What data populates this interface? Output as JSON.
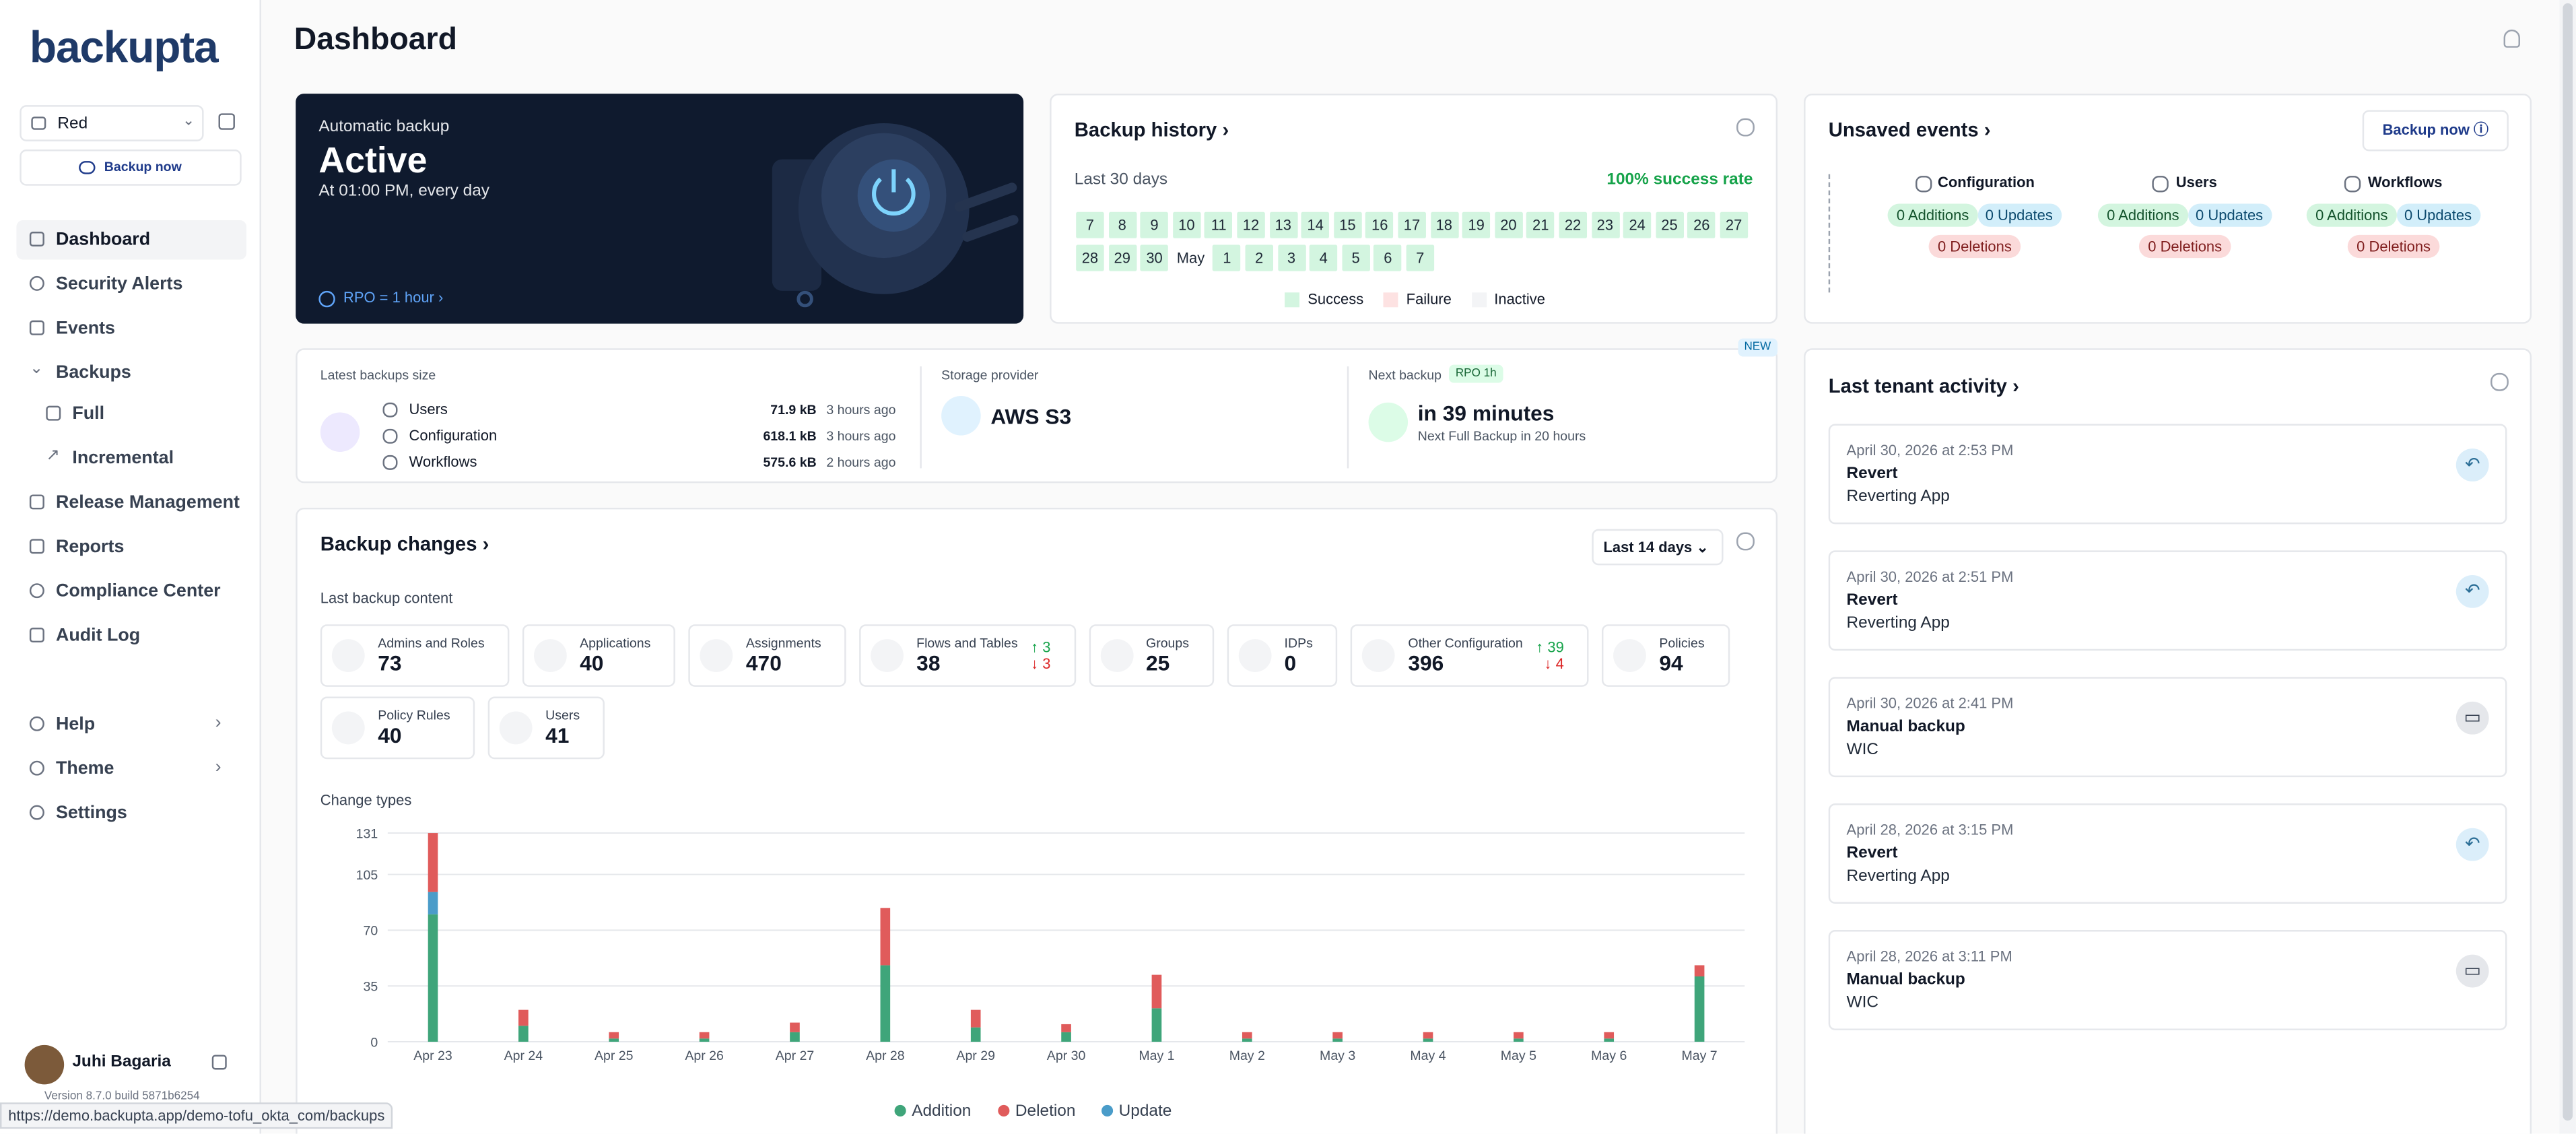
{
  "sidebar": {
    "logo": "backupta",
    "tenant": "Red",
    "backup_now": "Backup now",
    "nav": [
      "Dashboard",
      "Security Alerts",
      "Events",
      "Backups",
      "Full",
      "Incremental",
      "Release Management",
      "Reports",
      "Compliance Center",
      "Audit Log"
    ],
    "bottom_nav": [
      "Help",
      "Theme",
      "Settings"
    ],
    "user": "Juhi Bagaria",
    "version": "Version 8.7.0 build 5871b6254"
  },
  "status_url": "https://demo.backupta.app/demo-tofu_okta_com/backups",
  "header": {
    "title": "Dashboard"
  },
  "automatic_backup": {
    "label": "Automatic backup",
    "status": "Active",
    "schedule": "At 01:00 PM, every day",
    "rpo": "RPO = 1 hour"
  },
  "backup_history": {
    "title": "Backup history",
    "period": "Last 30 days",
    "success_rate": "100% success rate",
    "row1": [
      "7",
      "8",
      "9",
      "10",
      "11",
      "12",
      "13",
      "14",
      "15",
      "16",
      "17",
      "18",
      "19",
      "20",
      "21",
      "22",
      "23",
      "24",
      "25",
      "26",
      "27"
    ],
    "row2_start": [
      "28",
      "29",
      "30"
    ],
    "month": "May",
    "row2_end": [
      "1",
      "2",
      "3",
      "4",
      "5",
      "6",
      "7"
    ],
    "legend": [
      "Success",
      "Failure",
      "Inactive"
    ]
  },
  "unsaved_events": {
    "title": "Unsaved events",
    "button": "Backup now",
    "columns": [
      {
        "name": "Configuration",
        "additions": "0 Additions",
        "updates": "0 Updates",
        "deletions": "0 Deletions"
      },
      {
        "name": "Users",
        "additions": "0 Additions",
        "updates": "0 Updates",
        "deletions": "0 Deletions"
      },
      {
        "name": "Workflows",
        "additions": "0 Additions",
        "updates": "0 Updates",
        "deletions": "0 Deletions"
      }
    ]
  },
  "latest_backups": {
    "title": "Latest backups size",
    "rows": [
      {
        "name": "Users",
        "size": "71.9 kB",
        "age": "3 hours ago"
      },
      {
        "name": "Configuration",
        "size": "618.1 kB",
        "age": "3 hours ago"
      },
      {
        "name": "Workflows",
        "size": "575.6 kB",
        "age": "2 hours ago"
      }
    ]
  },
  "storage": {
    "title": "Storage provider",
    "value": "AWS S3"
  },
  "next_backup": {
    "title": "Next backup",
    "badge": "RPO 1h",
    "value": "in 39 minutes",
    "detail": "Next Full Backup in 20 hours",
    "new": "NEW"
  },
  "backup_changes": {
    "title": "Backup changes",
    "range": "Last 14 days",
    "content_title": "Last backup content",
    "tiles": [
      {
        "label": "Admins and Roles",
        "value": 73
      },
      {
        "label": "Applications",
        "value": 40
      },
      {
        "label": "Assignments",
        "value": 470
      },
      {
        "label": "Flows and Tables",
        "value": 38,
        "up": "↑ 3",
        "down": "↓ 3"
      },
      {
        "label": "Groups",
        "value": 25
      },
      {
        "label": "IDPs",
        "value": 0
      },
      {
        "label": "Other Configuration",
        "value": 396,
        "up": "↑ 39",
        "down": "↓ 4"
      },
      {
        "label": "Policies",
        "value": 94
      },
      {
        "label": "Policy Rules",
        "value": 40
      },
      {
        "label": "Users",
        "value": 41
      }
    ]
  },
  "chart_data": {
    "type": "bar",
    "stacked": true,
    "title": "Change types",
    "categories": [
      "Apr 23",
      "Apr 24",
      "Apr 25",
      "Apr 26",
      "Apr 27",
      "Apr 28",
      "Apr 29",
      "Apr 30",
      "May 1",
      "May 2",
      "May 3",
      "May 4",
      "May 5",
      "May 6",
      "May 7"
    ],
    "series": [
      {
        "name": "Addition",
        "color": "#3fa57a",
        "values": [
          80,
          10,
          2,
          2,
          6,
          48,
          9,
          6,
          21,
          2,
          2,
          2,
          2,
          2,
          41
        ]
      },
      {
        "name": "Deletion",
        "color": "#e05b5b",
        "values": [
          37,
          10,
          4,
          4,
          6,
          36,
          11,
          5,
          21,
          4,
          4,
          4,
          4,
          4,
          7
        ]
      },
      {
        "name": "Update",
        "color": "#4a9cc9",
        "values": [
          14,
          0,
          0,
          0,
          0,
          0,
          0,
          0,
          0,
          0,
          0,
          0,
          0,
          0,
          0
        ]
      }
    ],
    "ylim": [
      0,
      131
    ],
    "yticks": [
      0,
      35,
      70,
      105,
      131
    ],
    "grid": true,
    "legend": "bottom"
  },
  "tenant_activity": {
    "title": "Last tenant activity",
    "items": [
      {
        "date": "April 30, 2026 at 2:53 PM",
        "action": "Revert",
        "detail": "Reverting App"
      },
      {
        "date": "April 30, 2026 at 2:51 PM",
        "action": "Revert",
        "detail": "Reverting App"
      },
      {
        "date": "April 30, 2026 at 2:41 PM",
        "action": "Manual backup",
        "detail": "WIC"
      },
      {
        "date": "April 28, 2026 at 3:15 PM",
        "action": "Revert",
        "detail": "Reverting App"
      },
      {
        "date": "April 28, 2026 at 3:11 PM",
        "action": "Manual backup",
        "detail": "WIC"
      }
    ]
  }
}
